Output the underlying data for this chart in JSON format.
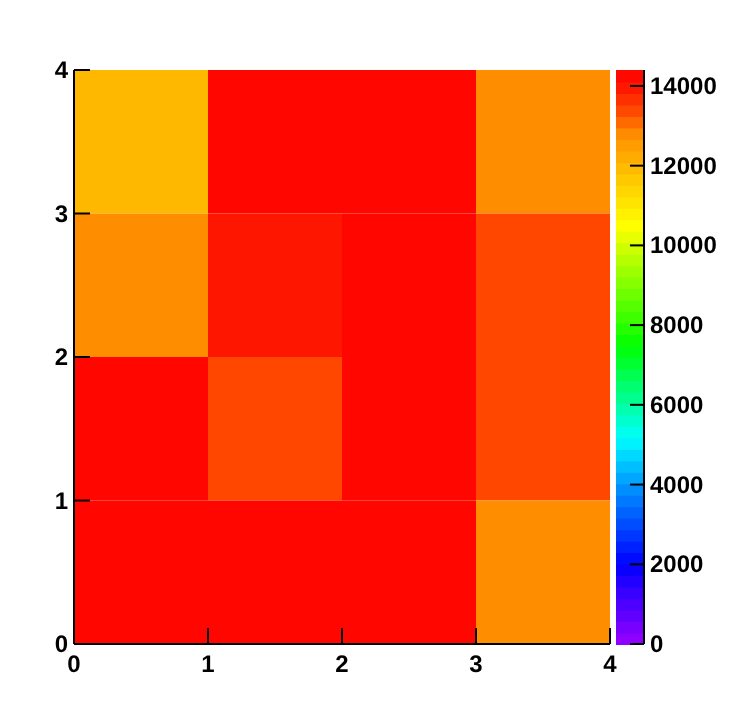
{
  "chart_data": {
    "type": "heatmap",
    "xlim": [
      0,
      4
    ],
    "xticks": [
      0,
      1,
      2,
      3,
      4
    ],
    "ylim": [
      0,
      4
    ],
    "yticks": [
      0,
      1,
      2,
      3,
      4
    ],
    "cells": [
      [
        12000,
        14300,
        14300,
        12800
      ],
      [
        12800,
        14000,
        14300,
        13400
      ],
      [
        14300,
        13400,
        14300,
        13400
      ],
      [
        14300,
        14300,
        14300,
        12800
      ]
    ],
    "clim": [
      0,
      14400
    ],
    "cticks": [
      0,
      2000,
      4000,
      6000,
      8000,
      10000,
      12000,
      14000
    ]
  }
}
